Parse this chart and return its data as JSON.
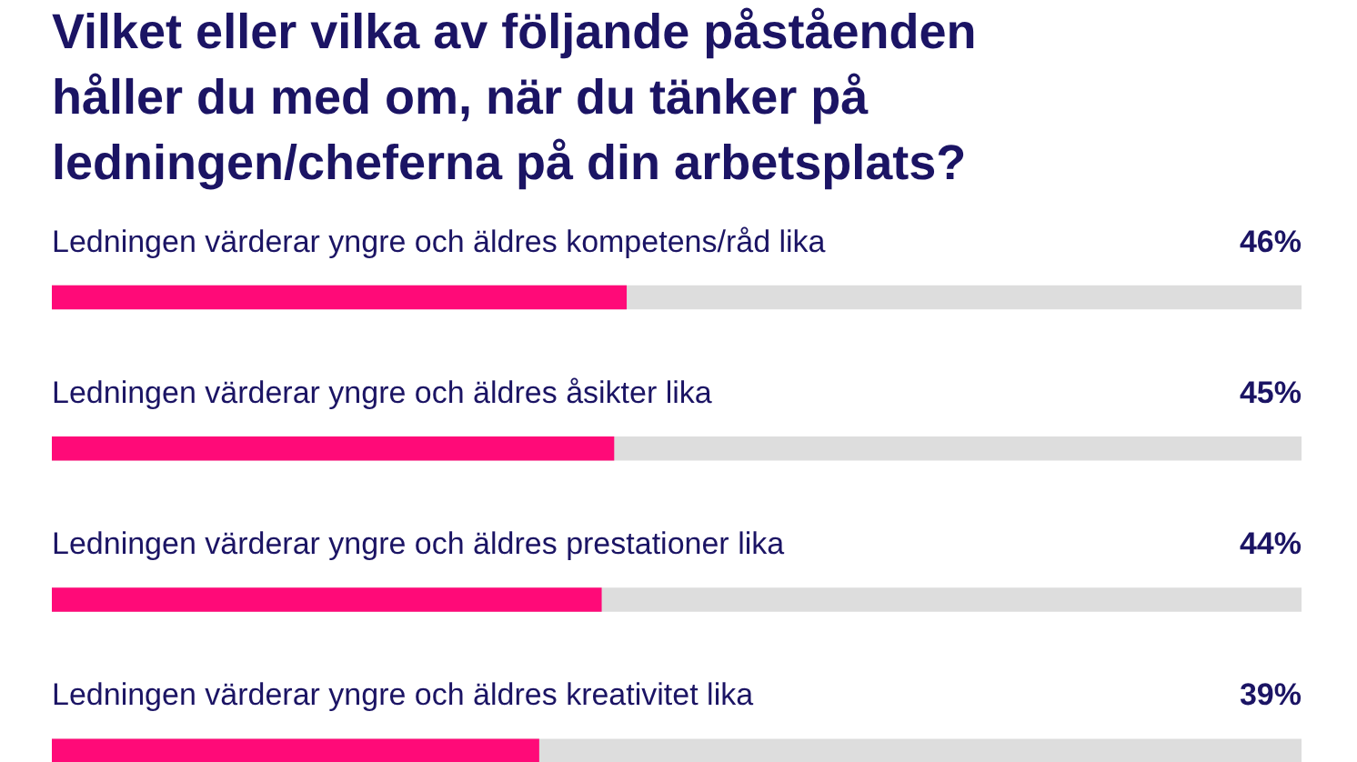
{
  "chart_data": {
    "type": "bar",
    "orientation": "horizontal",
    "title": "Vilket eller vilka av följande påståenden håller du med om, när du tänker på ledningen/cheferna på din arbetsplats?",
    "categories": [
      "Ledningen värderar yngre och äldres kompetens/råd lika",
      "Ledningen värderar yngre och äldres åsikter lika",
      "Ledningen värderar yngre och äldres prestationer lika",
      "Ledningen värderar yngre och äldres kreativitet lika"
    ],
    "xlim": [
      0,
      100
    ],
    "tick_labels": false,
    "series": [
      {
        "color": "#ff0a78",
        "values": [
          46,
          45,
          44,
          39
        ],
        "value_labels": [
          "46%",
          "45%",
          "44%",
          "39%"
        ]
      }
    ]
  }
}
